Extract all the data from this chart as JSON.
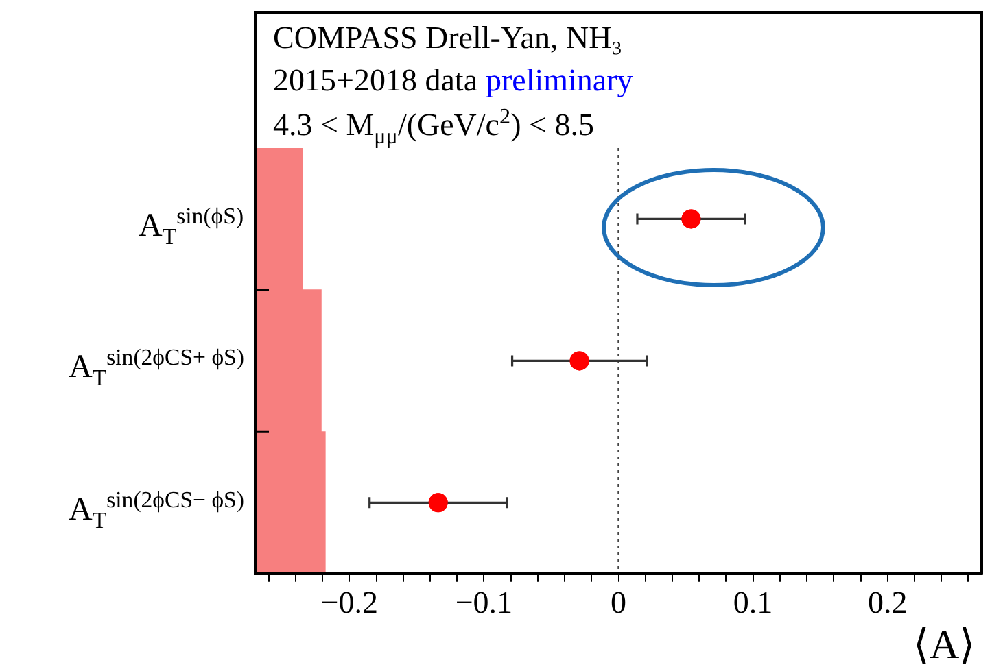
{
  "chart_data": {
    "type": "bar",
    "orientation": "horizontal",
    "xlabel": "⟨A⟩",
    "annotations": [
      "COMPASS Drell-Yan, NH₃",
      "2015+2018 data",
      "preliminary",
      "4.3 < M$_{μμ}$/(GeV/c$^{2}$) < 8.5"
    ],
    "categories": [
      "A$_{T}$$^{sin(ϕS)}$",
      "A$_{T}$$^{sin(2ϕCS+ ϕS)}$",
      "A$_{T}$$^{sin(2ϕCS− ϕS)}$"
    ],
    "series": [
      {
        "type": "bar",
        "color": "#f77f7f",
        "base": [
          -0.27,
          -0.27,
          -0.27
        ],
        "values": [
          0.035,
          0.049,
          0.052
        ]
      },
      {
        "type": "scatter",
        "color": "#ff0000",
        "marker": "circle",
        "values": [
          0.054,
          -0.029,
          -0.134
        ],
        "errors": [
          0.04,
          0.05,
          0.051
        ]
      }
    ],
    "xlim": [
      -0.27,
      0.27
    ],
    "xticks": [
      {
        "value": -0.26,
        "label": null
      },
      {
        "value": -0.24,
        "label": null
      },
      {
        "value": -0.22,
        "label": null
      },
      {
        "value": -0.2,
        "label": "−0.2"
      },
      {
        "value": -0.18,
        "label": null
      },
      {
        "value": -0.16,
        "label": null
      },
      {
        "value": -0.14,
        "label": null
      },
      {
        "value": -0.12,
        "label": null
      },
      {
        "value": -0.1,
        "label": "−0.1"
      },
      {
        "value": -0.08,
        "label": null
      },
      {
        "value": -0.06,
        "label": null
      },
      {
        "value": -0.04,
        "label": null
      },
      {
        "value": -0.02,
        "label": null
      },
      0,
      {
        "value": 0.02,
        "label": null
      },
      {
        "value": 0.04,
        "label": null
      },
      {
        "value": 0.06,
        "label": null
      },
      {
        "value": 0.08,
        "label": null
      },
      0.1,
      {
        "value": 0.12,
        "label": null
      },
      {
        "value": 0.14,
        "label": null
      },
      {
        "value": 0.16,
        "label": null
      },
      {
        "value": 0.18,
        "label": null
      },
      0.2,
      {
        "value": 0.22,
        "label": null
      },
      {
        "value": 0.24,
        "label": null
      },
      {
        "value": 0.26,
        "label": null
      }
    ],
    "ref_lines": [
      {
        "axis": "x",
        "value": 0,
        "color": "#444444",
        "line_style": "dotted"
      }
    ],
    "grid": false,
    "legend": false
  }
}
